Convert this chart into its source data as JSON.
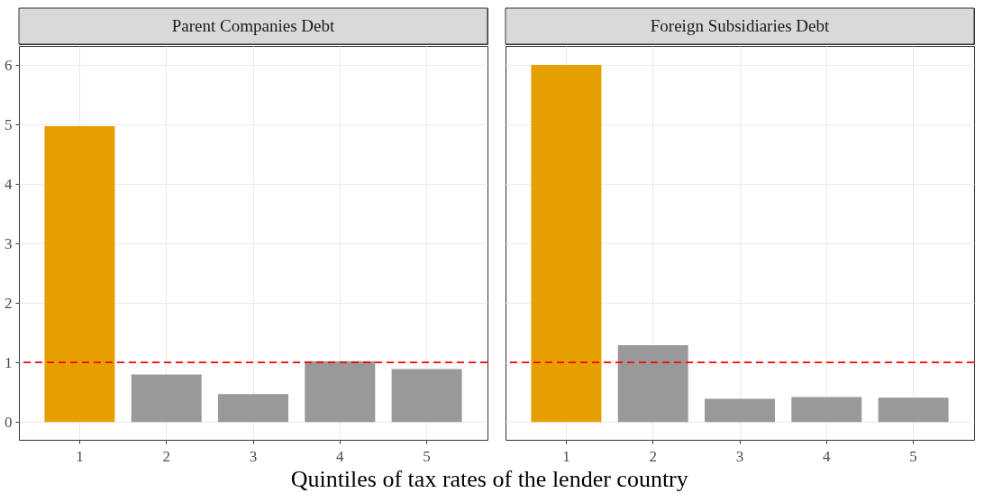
{
  "chart_data": [
    {
      "type": "bar",
      "title": "Parent Companies Debt",
      "xlabel": "Quintiles of tax rates of the lender country",
      "categories": [
        "1",
        "2",
        "3",
        "4",
        "5"
      ],
      "values": [
        4.97,
        0.8,
        0.47,
        1.02,
        0.89
      ],
      "colors": [
        "#e69f00",
        "#999999",
        "#999999",
        "#999999",
        "#999999"
      ],
      "ylim": [
        -0.3,
        6.32
      ],
      "yticks": [
        0,
        1,
        2,
        3,
        4,
        5,
        6
      ],
      "grid": true,
      "ref_lines": [
        {
          "axis": "y",
          "value": 1,
          "color": "#ff0000",
          "line_style": "dashed"
        }
      ]
    },
    {
      "type": "bar",
      "title": "Foreign Subsidiaries Debt",
      "categories": [
        "1",
        "2",
        "3",
        "4",
        "5"
      ],
      "values": [
        6.0,
        1.29,
        0.39,
        0.42,
        0.41
      ],
      "colors": [
        "#e69f00",
        "#999999",
        "#999999",
        "#999999",
        "#999999"
      ],
      "ylim": [
        -0.3,
        6.32
      ],
      "yticks": [
        0,
        1,
        2,
        3,
        4,
        5,
        6
      ],
      "grid": true,
      "tick_labels": "x",
      "ref_lines": [
        {
          "axis": "y",
          "value": 1,
          "color": "#ff0000",
          "line_style": "dashed"
        }
      ]
    }
  ]
}
